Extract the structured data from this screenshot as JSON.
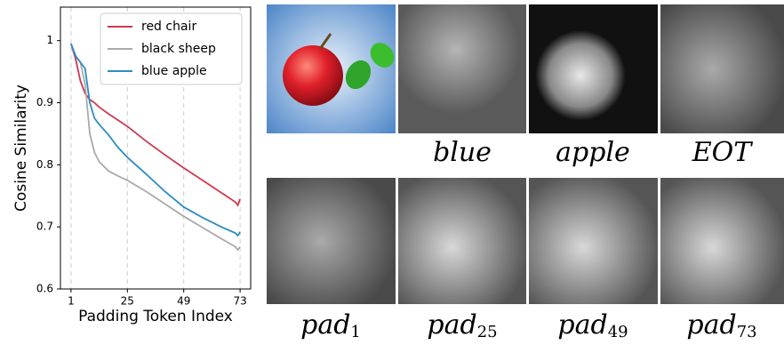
{
  "chart_data": {
    "type": "line",
    "xlabel": "Padding Token Index",
    "ylabel": "Cosine Similarity",
    "x": [
      1,
      3,
      5,
      7,
      9,
      11,
      13,
      17,
      21,
      25,
      33,
      41,
      49,
      57,
      65,
      71,
      72,
      73
    ],
    "series": [
      {
        "name": "red chair",
        "color": "#d0384e",
        "values": [
          0.995,
          0.97,
          0.935,
          0.915,
          0.905,
          0.9,
          0.893,
          0.882,
          0.872,
          0.862,
          0.838,
          0.816,
          0.795,
          0.775,
          0.755,
          0.74,
          0.735,
          0.745
        ]
      },
      {
        "name": "black sheep",
        "color": "#aaaaaa",
        "values": [
          0.995,
          0.975,
          0.965,
          0.93,
          0.85,
          0.82,
          0.805,
          0.79,
          0.782,
          0.775,
          0.757,
          0.737,
          0.717,
          0.699,
          0.681,
          0.668,
          0.663,
          0.668
        ]
      },
      {
        "name": "blue apple",
        "color": "#2b8cc4",
        "values": [
          0.995,
          0.975,
          0.965,
          0.955,
          0.9,
          0.875,
          0.865,
          0.848,
          0.828,
          0.812,
          0.785,
          0.757,
          0.732,
          0.715,
          0.7,
          0.69,
          0.686,
          0.692
        ]
      }
    ],
    "xlim": [
      -3.5,
      77.5
    ],
    "xticks": [
      1,
      25,
      49,
      73
    ],
    "ylim": [
      0.6,
      1.054
    ],
    "yticks": [
      0.6,
      0.7,
      0.8,
      0.9,
      1.0
    ],
    "grid": "x-dashed",
    "legend": "upper right"
  },
  "images": [
    {
      "caption": "blue"
    },
    {
      "caption": "apple"
    },
    {
      "caption": "EOT"
    },
    {
      "caption": "pad",
      "subscript": "1"
    },
    {
      "caption": "pad",
      "subscript": "25"
    },
    {
      "caption": "pad",
      "subscript": "49"
    },
    {
      "caption": "pad",
      "subscript": "73"
    }
  ]
}
